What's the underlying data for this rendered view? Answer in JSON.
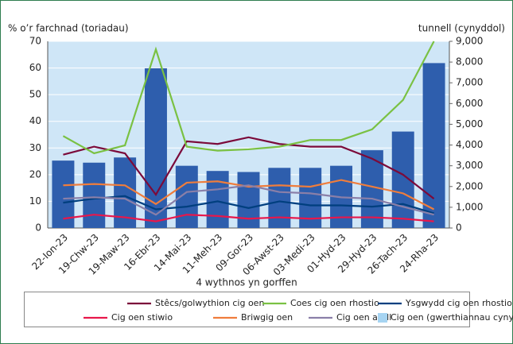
{
  "chart_data": {
    "type": "bar_line",
    "y_label": "% o’r farchnad (toriadau)",
    "y2_label": "tunnell (cynyddol)",
    "x_label": "4 wythnos yn gorffen",
    "categories": [
      "22-Ion-23",
      "19-Chw-23",
      "19-Maw-23",
      "16-Ebr-23",
      "14-Mai-23",
      "11-Meh-23",
      "09-Gor-23",
      "06-Awst-23",
      "03-Medi-23",
      "01-Hyd-23",
      "29-Hyd-23",
      "26-Tach-23",
      "24-Rha-23"
    ],
    "series": [
      {
        "name": "Stêcs/golwythion cig oen",
        "color": "#7b0a3a",
        "type": "line",
        "values": [
          27.5,
          30.5,
          28,
          12.5,
          32.5,
          31.5,
          34,
          31.5,
          30.5,
          30.5,
          26,
          20,
          11
        ]
      },
      {
        "name": "Coes cig oen rhostio",
        "color": "#7ac143",
        "type": "line",
        "values": [
          34.5,
          28,
          31,
          67,
          30.5,
          29,
          29.5,
          30.5,
          33,
          33,
          37,
          48,
          70
        ]
      },
      {
        "name": "Ysgwydd cig oen rhostio",
        "color": "#003f7f",
        "type": "line",
        "values": [
          9.5,
          11,
          12,
          7,
          8,
          10,
          7.5,
          10,
          8.5,
          8.5,
          8,
          9,
          5.5
        ]
      },
      {
        "name": "Cig oen stiwio",
        "color": "#e8174b",
        "type": "line",
        "values": [
          3.5,
          5,
          4,
          2.5,
          5,
          4.5,
          3.5,
          4,
          3.5,
          4,
          4,
          3.5,
          2.5
        ]
      },
      {
        "name": "Briwgig oen",
        "color": "#ef7d3c",
        "type": "line",
        "values": [
          16,
          16.5,
          16,
          9,
          17,
          17.5,
          15.5,
          16,
          15.5,
          18,
          15.5,
          13,
          7
        ]
      },
      {
        "name": "Cig oen arall",
        "color": "#8a7fa8",
        "type": "line",
        "values": [
          11,
          11.5,
          11,
          5,
          13.5,
          14.5,
          16,
          13.5,
          13,
          11.5,
          11,
          8,
          5
        ]
      },
      {
        "name": "Cig oen (gwerthiannau cynyddol)",
        "color": "#2e5ead",
        "legend_color": "#a6d4f2",
        "type": "bar",
        "axis": "y2",
        "values": [
          3250,
          3150,
          3400,
          7700,
          3000,
          2750,
          2700,
          2900,
          2900,
          3000,
          3750,
          4650,
          7950
        ]
      }
    ],
    "ylim": [
      0,
      70
    ],
    "yticks": [
      0,
      10,
      20,
      30,
      40,
      50,
      60,
      70
    ],
    "y2lim": [
      0,
      9000
    ],
    "y2ticks": [
      0,
      {
        "value": 1000,
        "label": "1,000"
      },
      {
        "value": 2000,
        "label": "2,000"
      },
      {
        "value": 3000,
        "label": "3,000"
      },
      {
        "value": 4000,
        "label": "4,000"
      },
      {
        "value": 5000,
        "label": "5,000"
      },
      {
        "value": 6000,
        "label": "6,000"
      },
      {
        "value": 7000,
        "label": "7,000"
      },
      {
        "value": 8000,
        "label": "8,000"
      },
      {
        "value": 9000,
        "label": "9,000"
      }
    ],
    "grid": true,
    "legend": "bottom"
  }
}
